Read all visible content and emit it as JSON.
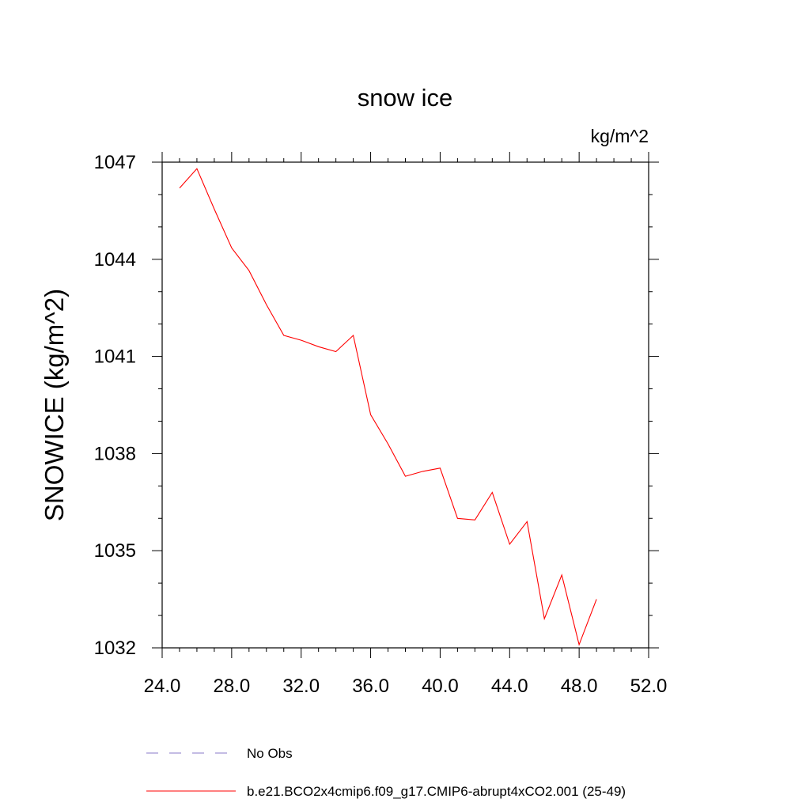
{
  "chart_data": {
    "type": "line",
    "title": "snow ice",
    "units_label": "kg/m^2",
    "ylabel": "SNOWICE  (kg/m^2)",
    "xlabel": "",
    "xlim": [
      24,
      52
    ],
    "ylim": [
      1032,
      1047
    ],
    "x_ticks": [
      "24.0",
      "28.0",
      "32.0",
      "36.0",
      "40.0",
      "44.0",
      "48.0",
      "52.0"
    ],
    "y_ticks": [
      "1032",
      "1035",
      "1038",
      "1041",
      "1044",
      "1047"
    ],
    "grid": false,
    "legend_position": "bottom",
    "series": [
      {
        "name": "No Obs",
        "color": "#8878c8",
        "dash": "dashed",
        "x": [],
        "y": []
      },
      {
        "name": "b.e21.BCO2x4cmip6.f09_g17.CMIP6-abrupt4xCO2.001 (25-49)",
        "color": "#ff0000",
        "dash": "solid",
        "x": [
          25,
          26,
          27,
          28,
          29,
          30,
          31,
          32,
          33,
          34,
          35,
          36,
          37,
          38,
          39,
          40,
          41,
          42,
          43,
          44,
          45,
          46,
          47,
          48,
          49
        ],
        "y": [
          1046.2,
          1046.8,
          1045.55,
          1044.35,
          1043.65,
          1042.6,
          1041.65,
          1041.5,
          1041.3,
          1041.15,
          1041.65,
          1039.2,
          1038.3,
          1037.3,
          1037.45,
          1037.55,
          1036.0,
          1035.95,
          1036.8,
          1035.2,
          1035.9,
          1032.9,
          1034.25,
          1032.1,
          1033.5
        ]
      }
    ]
  }
}
